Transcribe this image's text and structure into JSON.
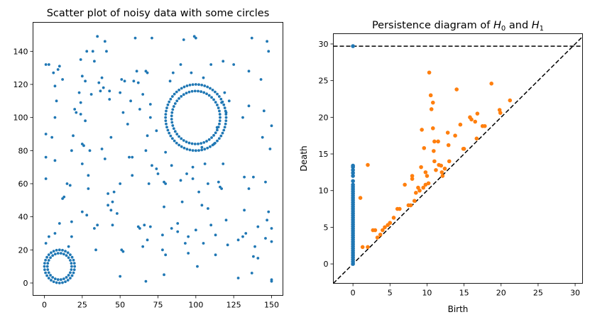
{
  "chart_data": [
    {
      "type": "scatter",
      "title": "Scatter plot of noisy data with some circles",
      "xlabel": "",
      "ylabel": "",
      "xlim": [
        -7.5,
        157.5
      ],
      "ylim": [
        -7.5,
        157.5
      ],
      "xticks": [
        0,
        25,
        50,
        75,
        100,
        125,
        150
      ],
      "yticks": [
        0,
        20,
        40,
        60,
        80,
        100,
        120,
        140
      ],
      "color": "#1f77b4",
      "grid": false,
      "circles": [
        {
          "cx": 10,
          "cy": 10,
          "r": 10
        },
        {
          "cx": 10,
          "cy": 10,
          "r": 8
        },
        {
          "cx": 100,
          "cy": 100,
          "r": 20
        },
        {
          "cx": 100,
          "cy": 100,
          "r": 16
        }
      ],
      "noise_points": [
        [
          1,
          132
        ],
        [
          3,
          132
        ],
        [
          1,
          90
        ],
        [
          1,
          76
        ],
        [
          1,
          63
        ],
        [
          5,
          88
        ],
        [
          3,
          28
        ],
        [
          1,
          24
        ],
        [
          6,
          127
        ],
        [
          7,
          119
        ],
        [
          9,
          129
        ],
        [
          10,
          131
        ],
        [
          7,
          100
        ],
        [
          7,
          74
        ],
        [
          12,
          123
        ],
        [
          8,
          110
        ],
        [
          12,
          51
        ],
        [
          15,
          60
        ],
        [
          7,
          30
        ],
        [
          10,
          36
        ],
        [
          13,
          52
        ],
        [
          17,
          59
        ],
        [
          16,
          22
        ],
        [
          18,
          28
        ],
        [
          18,
          37
        ],
        [
          18,
          80
        ],
        [
          19,
          89
        ],
        [
          20,
          105
        ],
        [
          21,
          103
        ],
        [
          24,
          135
        ],
        [
          23,
          115
        ],
        [
          24,
          109
        ],
        [
          25,
          125
        ],
        [
          25,
          72
        ],
        [
          25,
          84
        ],
        [
          26,
          83
        ],
        [
          24,
          102
        ],
        [
          27,
          122
        ],
        [
          27,
          98
        ],
        [
          28,
          140
        ],
        [
          25,
          43
        ],
        [
          28,
          41
        ],
        [
          29,
          65
        ],
        [
          29,
          57
        ],
        [
          30,
          80
        ],
        [
          31,
          114
        ],
        [
          32,
          140
        ],
        [
          33,
          134
        ],
        [
          35,
          149
        ],
        [
          36,
          121
        ],
        [
          38,
          124
        ],
        [
          37,
          116
        ],
        [
          39,
          118
        ],
        [
          33,
          33
        ],
        [
          35,
          35
        ],
        [
          34,
          20
        ],
        [
          40,
          146
        ],
        [
          41,
          140
        ],
        [
          43,
          116
        ],
        [
          43,
          111
        ],
        [
          38,
          81
        ],
        [
          40,
          75
        ],
        [
          42,
          54
        ],
        [
          42,
          47
        ],
        [
          44,
          44
        ],
        [
          45,
          49
        ],
        [
          44,
          88
        ],
        [
          46,
          55
        ],
        [
          45,
          35
        ],
        [
          48,
          42
        ],
        [
          50,
          115
        ],
        [
          51,
          123
        ],
        [
          53,
          122
        ],
        [
          52,
          103
        ],
        [
          50,
          60
        ],
        [
          52,
          19
        ],
        [
          51,
          20
        ],
        [
          50,
          4
        ],
        [
          55,
          96
        ],
        [
          56,
          76
        ],
        [
          58,
          76
        ],
        [
          59,
          122
        ],
        [
          57,
          110
        ],
        [
          58,
          65
        ],
        [
          61,
          128
        ],
        [
          60,
          148
        ],
        [
          62,
          121
        ],
        [
          63,
          105
        ],
        [
          65,
          114
        ],
        [
          63,
          33
        ],
        [
          62,
          34
        ],
        [
          65,
          22
        ],
        [
          67,
          1
        ],
        [
          66,
          35
        ],
        [
          68,
          127
        ],
        [
          67,
          128
        ],
        [
          68,
          89
        ],
        [
          67,
          80
        ],
        [
          69,
          60
        ],
        [
          70,
          100
        ],
        [
          71,
          71
        ],
        [
          71,
          148
        ],
        [
          70,
          108
        ],
        [
          68,
          26
        ],
        [
          70,
          34
        ],
        [
          74,
          92
        ],
        [
          75,
          66
        ],
        [
          74,
          69
        ],
        [
          78,
          20
        ],
        [
          80,
          79
        ],
        [
          79,
          61
        ],
        [
          80,
          60
        ],
        [
          79,
          46
        ],
        [
          80,
          17
        ],
        [
          79,
          5
        ],
        [
          78,
          29
        ],
        [
          83,
          122
        ],
        [
          84,
          33
        ],
        [
          85,
          127
        ],
        [
          84,
          71
        ],
        [
          88,
          36
        ],
        [
          88,
          31
        ],
        [
          91,
          49
        ],
        [
          90,
          132
        ],
        [
          92,
          147
        ],
        [
          93,
          24
        ],
        [
          90,
          62
        ],
        [
          95,
          28
        ],
        [
          95,
          18
        ],
        [
          94,
          66
        ],
        [
          97,
          127
        ],
        [
          98,
          70
        ],
        [
          98,
          63
        ],
        [
          99,
          149
        ],
        [
          100,
          148
        ],
        [
          101,
          10
        ],
        [
          100,
          32
        ],
        [
          102,
          55
        ],
        [
          104,
          47
        ],
        [
          104,
          82
        ],
        [
          105,
          24
        ],
        [
          105,
          124
        ],
        [
          106,
          72
        ],
        [
          108,
          45
        ],
        [
          108,
          60
        ],
        [
          110,
          35
        ],
        [
          110,
          132
        ],
        [
          112,
          84
        ],
        [
          113,
          17
        ],
        [
          114,
          94
        ],
        [
          113,
          29
        ],
        [
          115,
          61
        ],
        [
          116,
          58
        ],
        [
          117,
          57
        ],
        [
          117,
          109
        ],
        [
          118,
          72
        ],
        [
          119,
          115
        ],
        [
          120,
          103
        ],
        [
          118,
          134
        ],
        [
          122,
          110
        ],
        [
          120,
          38
        ],
        [
          121,
          23
        ],
        [
          125,
          132
        ],
        [
          128,
          3
        ],
        [
          128,
          26
        ],
        [
          131,
          28
        ],
        [
          132,
          44
        ],
        [
          132,
          64
        ],
        [
          131,
          100
        ],
        [
          133,
          30
        ],
        [
          135,
          128
        ],
        [
          135,
          57
        ],
        [
          137,
          148
        ],
        [
          135,
          107
        ],
        [
          137,
          6
        ],
        [
          138,
          16
        ],
        [
          139,
          22
        ],
        [
          138,
          64
        ],
        [
          141,
          15
        ],
        [
          141,
          34
        ],
        [
          143,
          123
        ],
        [
          144,
          88
        ],
        [
          145,
          104
        ],
        [
          146,
          61
        ],
        [
          147,
          38
        ],
        [
          146,
          27
        ],
        [
          147,
          146
        ],
        [
          148,
          43
        ],
        [
          148,
          140
        ],
        [
          149,
          81
        ],
        [
          150,
          95
        ],
        [
          150,
          33
        ],
        [
          150,
          2
        ],
        [
          150,
          1
        ],
        [
          150,
          25
        ]
      ]
    },
    {
      "type": "scatter",
      "title": "Persistence diagram of H0 and H1",
      "title_parts": [
        "Persistence diagram of ",
        "H",
        "0",
        " and ",
        "H",
        "1"
      ],
      "xlabel": "Birth",
      "ylabel": "Death",
      "xlim": [
        -2.65,
        31
      ],
      "ylim": [
        -2.65,
        31.4
      ],
      "xticks": [
        0,
        5,
        10,
        15,
        20,
        25,
        30
      ],
      "yticks": [
        0,
        5,
        10,
        15,
        20,
        25,
        30
      ],
      "infinity_line": 29.7,
      "diagonal": true,
      "grid": false,
      "series": [
        {
          "name": "H0",
          "color": "#1f77b4",
          "points": [
            [
              0,
              0
            ],
            [
              0,
              0.3
            ],
            [
              0,
              0.6
            ],
            [
              0,
              0.9
            ],
            [
              0,
              1.2
            ],
            [
              0,
              1.5
            ],
            [
              0,
              1.8
            ],
            [
              0,
              2.1
            ],
            [
              0,
              2.4
            ],
            [
              0,
              2.7
            ],
            [
              0,
              3.0
            ],
            [
              0,
              3.3
            ],
            [
              0,
              3.6
            ],
            [
              0,
              3.9
            ],
            [
              0,
              4.2
            ],
            [
              0,
              4.5
            ],
            [
              0,
              4.8
            ],
            [
              0,
              5.1
            ],
            [
              0,
              5.4
            ],
            [
              0,
              5.7
            ],
            [
              0,
              6.0
            ],
            [
              0,
              6.3
            ],
            [
              0,
              6.6
            ],
            [
              0,
              6.9
            ],
            [
              0,
              7.2
            ],
            [
              0,
              7.5
            ],
            [
              0,
              7.8
            ],
            [
              0,
              8.1
            ],
            [
              0,
              8.4
            ],
            [
              0,
              8.7
            ],
            [
              0,
              9.0
            ],
            [
              0,
              9.3
            ],
            [
              0,
              9.6
            ],
            [
              0,
              9.9
            ],
            [
              0,
              10.2
            ],
            [
              0,
              10.5
            ],
            [
              0,
              10.8
            ],
            [
              0,
              11.3
            ],
            [
              0,
              12.0
            ],
            [
              0,
              12.4
            ],
            [
              0,
              12.8
            ],
            [
              0,
              13.2
            ],
            [
              0,
              13.4
            ],
            [
              0,
              29.7
            ]
          ]
        },
        {
          "name": "H1",
          "color": "#ff7f0e",
          "points": [
            [
              1.0,
              9.0
            ],
            [
              1.3,
              2.3
            ],
            [
              2.0,
              13.5
            ],
            [
              2.0,
              2.3
            ],
            [
              2.7,
              4.6
            ],
            [
              3.0,
              4.6
            ],
            [
              3.3,
              3.6
            ],
            [
              3.7,
              4.0
            ],
            [
              4.0,
              4.6
            ],
            [
              4.3,
              5.0
            ],
            [
              4.7,
              5.3
            ],
            [
              5.0,
              5.6
            ],
            [
              5.5,
              6.3
            ],
            [
              6.0,
              7.5
            ],
            [
              6.3,
              7.5
            ],
            [
              7.0,
              10.8
            ],
            [
              7.5,
              8.0
            ],
            [
              7.8,
              8.0
            ],
            [
              8.0,
              12.0
            ],
            [
              8.0,
              11.6
            ],
            [
              8.3,
              8.6
            ],
            [
              8.5,
              9.7
            ],
            [
              8.8,
              10.4
            ],
            [
              9.0,
              10.0
            ],
            [
              9.2,
              13.2
            ],
            [
              9.3,
              18.3
            ],
            [
              9.5,
              10.4
            ],
            [
              9.6,
              15.8
            ],
            [
              9.8,
              12.5
            ],
            [
              9.8,
              10.8
            ],
            [
              10.0,
              12.0
            ],
            [
              10.2,
              11.0
            ],
            [
              10.3,
              26.1
            ],
            [
              10.5,
              23.0
            ],
            [
              10.6,
              21.1
            ],
            [
              10.8,
              22.0
            ],
            [
              10.8,
              18.5
            ],
            [
              10.9,
              15.4
            ],
            [
              11.0,
              16.7
            ],
            [
              11.0,
              14.0
            ],
            [
              11.2,
              12.8
            ],
            [
              11.5,
              16.7
            ],
            [
              11.6,
              13.5
            ],
            [
              11.9,
              13.4
            ],
            [
              12.0,
              12.5
            ],
            [
              12.1,
              12.0
            ],
            [
              12.4,
              13.0
            ],
            [
              12.8,
              17.9
            ],
            [
              12.9,
              16.2
            ],
            [
              13.0,
              14.0
            ],
            [
              13.8,
              17.5
            ],
            [
              14.0,
              23.8
            ],
            [
              14.5,
              19.0
            ],
            [
              14.9,
              15.7
            ],
            [
              15.0,
              15.7
            ],
            [
              15.8,
              20.0
            ],
            [
              16.0,
              19.7
            ],
            [
              16.5,
              19.4
            ],
            [
              16.7,
              17.1
            ],
            [
              16.8,
              20.5
            ],
            [
              17.5,
              18.8
            ],
            [
              17.8,
              18.8
            ],
            [
              18.7,
              24.6
            ],
            [
              19.8,
              21.0
            ],
            [
              19.9,
              20.6
            ],
            [
              21.2,
              22.3
            ]
          ]
        }
      ]
    }
  ]
}
